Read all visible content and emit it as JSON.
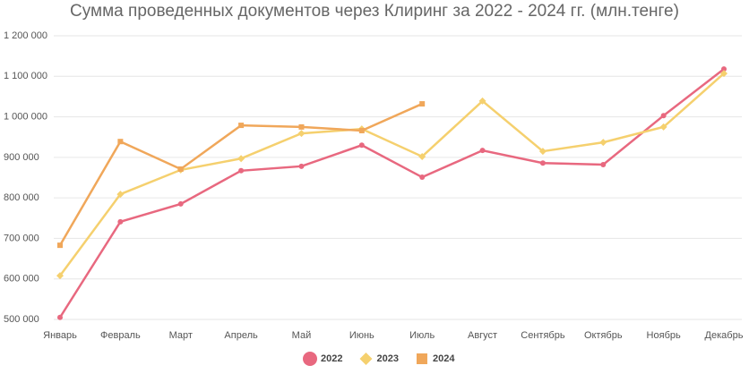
{
  "chart_data": {
    "type": "line",
    "title": "Сумма проведенных документов через Клиринг за 2022 - 2024 гг. (млн.тенге)",
    "categories": [
      "Январь",
      "Февраль",
      "Март",
      "Апрель",
      "Май",
      "Июнь",
      "Июль",
      "Август",
      "Сентябрь",
      "Октябрь",
      "Ноябрь",
      "Декабрь"
    ],
    "series": [
      {
        "name": "2022",
        "color": "#e8687f",
        "marker": "circle",
        "values": [
          505000,
          741000,
          785000,
          867000,
          878000,
          930000,
          851000,
          917000,
          886000,
          882000,
          1003000,
          1118000
        ]
      },
      {
        "name": "2023",
        "color": "#f5d06e",
        "marker": "diamond",
        "values": [
          608000,
          809000,
          869000,
          897000,
          959000,
          970000,
          902000,
          1039000,
          915000,
          937000,
          975000,
          1107000
        ]
      },
      {
        "name": "2024",
        "color": "#f0a75a",
        "marker": "square",
        "values": [
          683000,
          939000,
          871000,
          979000,
          975000,
          966000,
          1032000,
          null,
          null,
          null,
          null,
          null
        ]
      }
    ],
    "ylim": [
      500000,
      1200000
    ],
    "yticks": [
      {
        "value": 500000,
        "label": "500 000"
      },
      {
        "value": 600000,
        "label": "600 000"
      },
      {
        "value": 700000,
        "label": "700 000"
      },
      {
        "value": 800000,
        "label": "800 000"
      },
      {
        "value": 900000,
        "label": "900 000"
      },
      {
        "value": 1000000,
        "label": "1 000 000"
      },
      {
        "value": 1100000,
        "label": "1 100 000"
      },
      {
        "value": 1200000,
        "label": "1 200 000"
      }
    ],
    "grid": true,
    "legend": "bottom"
  }
}
